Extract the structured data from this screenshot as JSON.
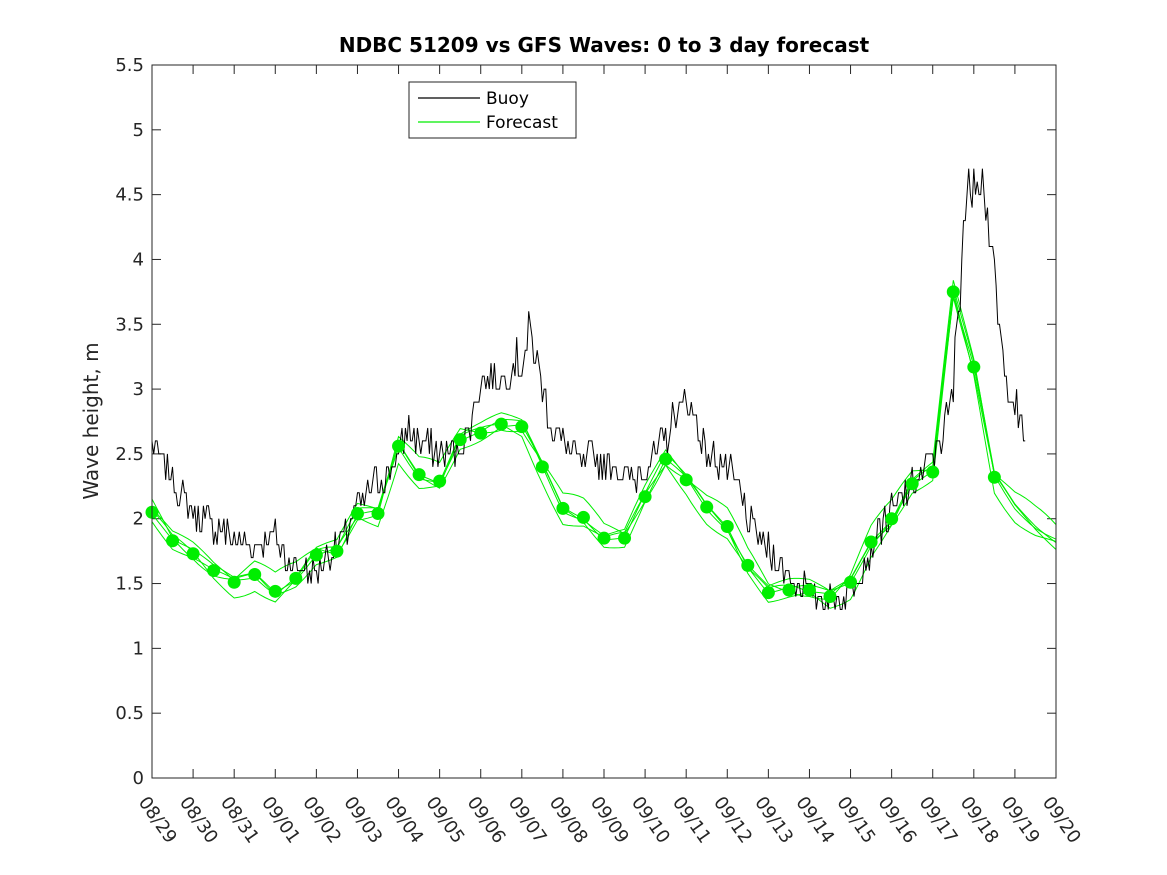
{
  "chart_data": {
    "type": "line",
    "title": "NDBC 51209 vs GFS Waves: 0 to 3 day forecast",
    "xlabel": "",
    "ylabel": "Wave height, m",
    "ylim": [
      0,
      5.5
    ],
    "yticks": [
      0,
      0.5,
      1,
      1.5,
      2,
      2.5,
      3,
      3.5,
      4,
      4.5,
      5,
      5.5
    ],
    "ytick_labels": [
      "0",
      "0.5",
      "1",
      "1.5",
      "2",
      "2.5",
      "3",
      "3.5",
      "4",
      "4.5",
      "5",
      "5.5"
    ],
    "xlim_days": [
      0,
      22
    ],
    "xtick_labels": [
      "08/29",
      "08/30",
      "08/31",
      "09/01",
      "09/02",
      "09/03",
      "09/04",
      "09/05",
      "09/06",
      "09/07",
      "09/08",
      "09/09",
      "09/10",
      "09/11",
      "09/12",
      "09/13",
      "09/14",
      "09/15",
      "09/16",
      "09/17",
      "09/18",
      "09/19",
      "09/20"
    ],
    "legend": {
      "location": "top-center",
      "entries": [
        "Buoy",
        "Forecast"
      ]
    },
    "colors": {
      "buoy": "#000000",
      "forecast": "#00ee00",
      "axis": "#262626"
    },
    "series": [
      {
        "name": "Buoy",
        "x": [
          0,
          0.25,
          0.5,
          0.75,
          1,
          1.25,
          1.5,
          1.75,
          2,
          2.25,
          2.5,
          2.75,
          3,
          3.25,
          3.5,
          3.75,
          4,
          4.25,
          4.5,
          4.75,
          5,
          5.25,
          5.5,
          5.75,
          6,
          6.25,
          6.5,
          6.75,
          7,
          7.25,
          7.5,
          7.75,
          8,
          8.25,
          8.5,
          8.75,
          9,
          9.25,
          9.5,
          9.75,
          10,
          10.25,
          10.5,
          10.75,
          11,
          11.25,
          11.5,
          11.75,
          12,
          12.25,
          12.5,
          12.75,
          13,
          13.25,
          13.5,
          13.75,
          14,
          14.25,
          14.5,
          14.75,
          15,
          15.25,
          15.5,
          15.75,
          16,
          16.25,
          16.5,
          16.75,
          17,
          17.25,
          17.5,
          17.75,
          18,
          18.25,
          18.5,
          18.75,
          19,
          19.25,
          19.5,
          19.75,
          20,
          20.25,
          20.5,
          20.75,
          21,
          21.25
        ],
        "y": [
          2.6,
          2.45,
          2.3,
          2.15,
          2.05,
          2.0,
          1.95,
          1.9,
          1.85,
          1.8,
          1.8,
          1.85,
          1.85,
          1.7,
          1.65,
          1.6,
          1.6,
          1.7,
          1.8,
          1.9,
          2.1,
          2.2,
          2.3,
          2.35,
          2.5,
          2.7,
          2.6,
          2.55,
          2.5,
          2.5,
          2.55,
          2.75,
          3.05,
          3.1,
          3.05,
          3.15,
          3.25,
          3.4,
          3.0,
          2.7,
          2.6,
          2.5,
          2.4,
          2.5,
          2.4,
          2.45,
          2.3,
          2.3,
          2.4,
          2.5,
          2.6,
          2.85,
          2.9,
          2.75,
          2.5,
          2.45,
          2.4,
          2.25,
          2.0,
          1.85,
          1.75,
          1.65,
          1.55,
          1.5,
          1.45,
          1.4,
          1.4,
          1.38,
          1.45,
          1.6,
          1.75,
          1.95,
          2.05,
          2.15,
          2.25,
          2.35,
          2.5,
          2.65,
          3.0,
          4.3,
          4.7,
          4.6,
          3.8,
          3.1,
          2.9,
          2.6
        ]
      },
      {
        "name": "Forecast",
        "x": [
          0,
          0.5,
          1,
          1.5,
          2,
          2.5,
          3,
          3.5,
          4,
          4.5,
          5,
          5.5,
          6,
          6.5,
          7,
          7.5,
          8,
          8.5,
          9,
          9.5,
          10,
          10.5,
          11,
          11.5,
          12,
          12.5,
          13,
          13.5,
          14,
          14.5,
          15,
          15.5,
          16,
          16.5,
          17,
          17.5,
          18,
          18.5,
          19,
          19.5,
          20,
          20.5,
          21,
          21.5,
          22
        ],
        "y": [
          2.05,
          1.83,
          1.73,
          1.6,
          1.51,
          1.57,
          1.44,
          1.54,
          1.72,
          1.75,
          2.04,
          2.04,
          2.56,
          2.34,
          2.29,
          2.61,
          2.66,
          2.73,
          2.71,
          2.4,
          2.08,
          2.01,
          1.85,
          1.85,
          2.17,
          2.46,
          2.3,
          2.09,
          1.94,
          1.64,
          1.43,
          1.45,
          1.45,
          1.4,
          1.51,
          1.82,
          2.0,
          2.27,
          2.36,
          3.75,
          3.17,
          2.32,
          2.1,
          1.95,
          1.83
        ]
      }
    ],
    "forecast_markers": {
      "x": [
        0,
        0.5,
        1,
        1.5,
        2,
        2.5,
        3,
        3.5,
        4,
        4.5,
        5,
        5.5,
        6,
        6.5,
        7,
        7.5,
        8,
        8.5,
        9,
        9.5,
        10,
        10.5,
        11,
        11.5,
        12,
        12.5,
        13,
        13.5,
        14,
        14.5,
        15,
        15.5,
        16,
        16.5,
        17,
        17.5,
        18,
        18.5,
        19,
        19.5,
        20,
        20.5
      ],
      "y": [
        2.05,
        1.83,
        1.73,
        1.6,
        1.51,
        1.57,
        1.44,
        1.54,
        1.72,
        1.75,
        2.04,
        2.04,
        2.56,
        2.34,
        2.29,
        2.61,
        2.66,
        2.73,
        2.71,
        2.4,
        2.08,
        2.01,
        1.85,
        1.85,
        2.17,
        2.46,
        2.3,
        2.09,
        1.94,
        1.64,
        1.43,
        1.45,
        1.45,
        1.4,
        1.51,
        1.82,
        2.0,
        2.27,
        2.36,
        3.75,
        3.17,
        2.32
      ]
    },
    "forecast_ensemble_offsets": [
      0.06,
      -0.05,
      0.1,
      -0.09,
      0.03
    ]
  }
}
